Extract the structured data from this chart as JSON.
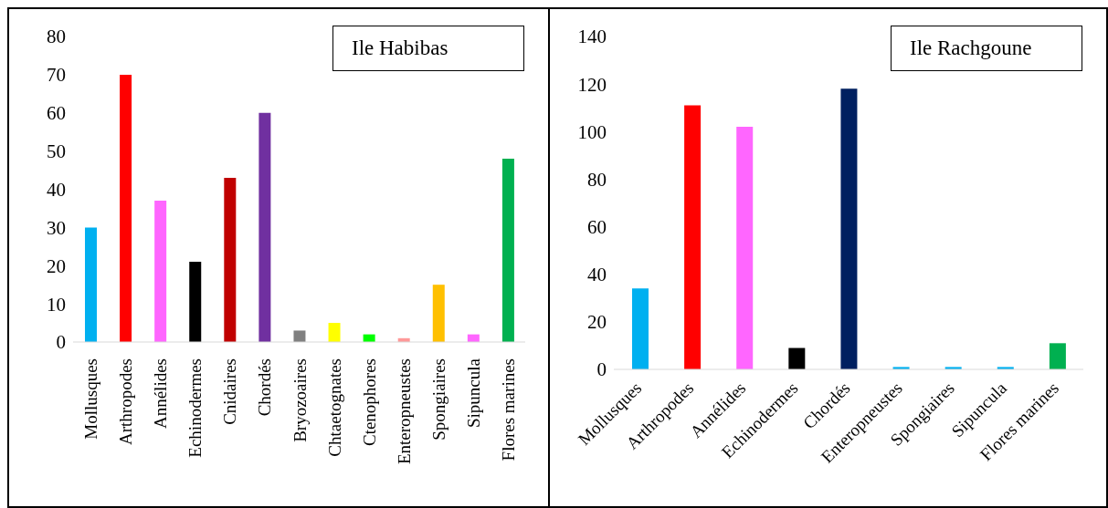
{
  "chart_data": [
    {
      "type": "bar",
      "title": "Ile Habibas",
      "categories": [
        "Mollusques",
        "Arthropodes",
        "Annélides",
        "Echinodermes",
        "Cnidaires",
        "Chordés",
        "Bryozoaires",
        "Chtaetognates",
        "Ctenophores",
        "Enteropneustes",
        "Spongiaires",
        "Sipuncula",
        "Flores marines"
      ],
      "values": [
        30,
        70,
        37,
        21,
        43,
        60,
        3,
        5,
        2,
        1,
        15,
        2,
        48
      ],
      "colors": [
        "#00b0f0",
        "#ff0000",
        "#ff66ff",
        "#000000",
        "#c00000",
        "#7030a0",
        "#808080",
        "#ffff00",
        "#00ff00",
        "#ff9999",
        "#ffc000",
        "#ff66ff",
        "#00b050"
      ],
      "ylim": [
        0,
        80
      ],
      "yticks": [
        0,
        10,
        20,
        30,
        40,
        50,
        60,
        70,
        80
      ],
      "grid": false,
      "legend": false
    },
    {
      "type": "bar",
      "title": "Ile Rachgoune",
      "categories": [
        "Mollusques",
        "Arthropodes",
        "Annélides",
        "Echinodermes",
        "Chordés",
        "Enteropneustes",
        "Spongiaires",
        "Sipuncula",
        "Flores marines"
      ],
      "values": [
        34,
        111,
        102,
        9,
        118,
        1,
        1,
        1,
        11
      ],
      "colors": [
        "#00b0f0",
        "#ff0000",
        "#ff66ff",
        "#000000",
        "#002060",
        "#00b0f0",
        "#00b0f0",
        "#00b0f0",
        "#00b050"
      ],
      "ylim": [
        0,
        140
      ],
      "yticks": [
        0,
        20,
        40,
        60,
        80,
        100,
        120,
        140
      ],
      "grid": false,
      "legend": false
    }
  ]
}
